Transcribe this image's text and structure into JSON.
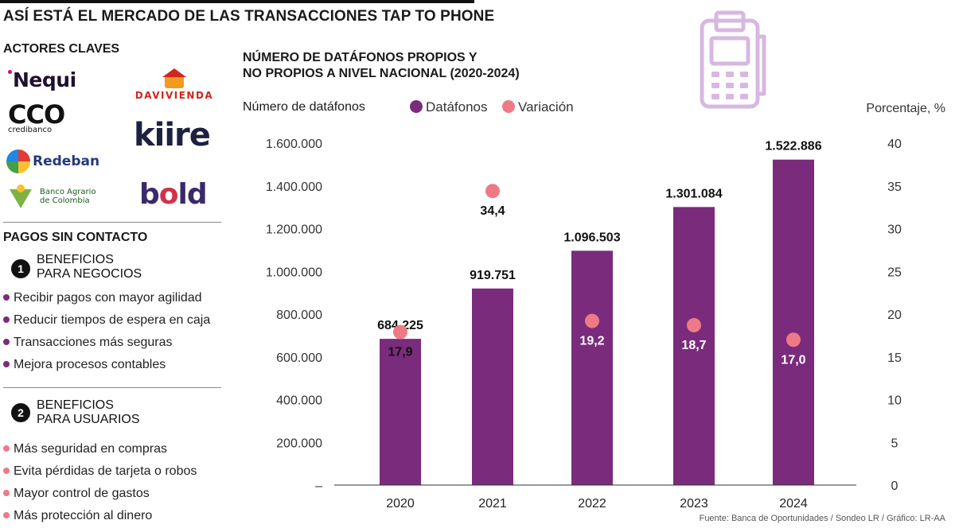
{
  "main_title": "ASÍ ESTÁ EL MERCADO DE LAS TRANSACCIONES TAP TO PHONE",
  "actors": {
    "heading": "ACTORES CLAVES",
    "logos": [
      "Nequi",
      "Davivienda",
      "CCO credibanco",
      "kiire",
      "Redeban",
      "bold",
      "Banco Agrario de Colombia"
    ]
  },
  "contact": {
    "heading": "PAGOS SIN CONTACTO",
    "groups": [
      {
        "number": "1",
        "title_line1": "BENEFICIOS",
        "title_line2": "PARA NEGOCIOS",
        "bullet_color": "#7a2b7c",
        "items": [
          "Recibir pagos con mayor agilidad",
          "Reducir tiempos de espera en caja",
          "Transacciones más seguras",
          "Mejora procesos contables"
        ]
      },
      {
        "number": "2",
        "title_line1": "BENEFICIOS",
        "title_line2": "PARA USUARIOS",
        "bullet_color": "#ee7a86",
        "items": [
          "Más seguridad en compras",
          "Evita pérdidas de tarjeta o robos",
          "Mayor control de gastos",
          "Más protección al dinero"
        ]
      }
    ]
  },
  "chart_data": {
    "type": "bar",
    "title_line1": "NÚMERO DE DATÁFONOS PROPIOS Y",
    "title_line2": "NO PROPIOS A NIVEL NACIONAL (2020-2024)",
    "ylabel_left": "Número de datáfonos",
    "ylabel_right": "Porcentaje, %",
    "categories": [
      "2020",
      "2021",
      "2022",
      "2023",
      "2024"
    ],
    "series": [
      {
        "name": "Datáfonos",
        "color": "#7a2b7c",
        "values": [
          684225,
          919751,
          1096503,
          1301084,
          1522886
        ],
        "labels": [
          "684.225",
          "919.751",
          "1.096.503",
          "1.301.084",
          "1.522.886"
        ]
      },
      {
        "name": "Variación",
        "color": "#ee7a86",
        "axis": "right",
        "values": [
          17.9,
          34.4,
          19.2,
          18.7,
          17.0
        ],
        "labels": [
          "17,9",
          "34,4",
          "19,2",
          "18,7",
          "17,0"
        ]
      }
    ],
    "ylim_left": [
      0,
      1600000
    ],
    "ylim_right": [
      0,
      40
    ],
    "left_ticks": [
      {
        "value": 0,
        "label": "–"
      },
      {
        "value": 200000,
        "label": "200.000"
      },
      {
        "value": 400000,
        "label": "400.000"
      },
      {
        "value": 600000,
        "label": "600.000"
      },
      {
        "value": 800000,
        "label": "800.000"
      },
      {
        "value": 1000000,
        "label": "1.000.000"
      },
      {
        "value": 1200000,
        "label": "1.200.000"
      },
      {
        "value": 1400000,
        "label": "1.400.000"
      },
      {
        "value": 1600000,
        "label": "1.600.000"
      }
    ],
    "right_ticks": [
      {
        "value": 0,
        "label": "0"
      },
      {
        "value": 5,
        "label": "5"
      },
      {
        "value": 10,
        "label": "10"
      },
      {
        "value": 15,
        "label": "15"
      },
      {
        "value": 20,
        "label": "20"
      },
      {
        "value": 25,
        "label": "25"
      },
      {
        "value": 30,
        "label": "30"
      },
      {
        "value": 35,
        "label": "35"
      },
      {
        "value": 40,
        "label": "40"
      }
    ],
    "legend_position": "top",
    "grid": false
  },
  "source": "Fuente: Banca de Oportunidades / Sondeo LR / Gráfico: LR-AA",
  "colors": {
    "accent_purple": "#7a2b7c",
    "accent_pink": "#ee7a86",
    "icon_lilac": "#d7b8e0"
  }
}
